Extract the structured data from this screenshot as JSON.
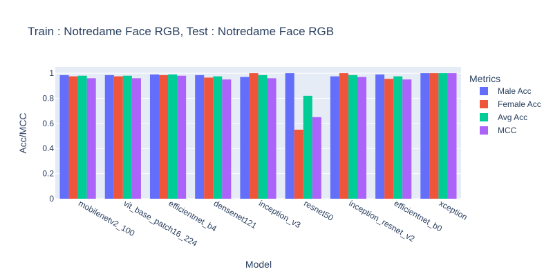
{
  "chart_data": {
    "type": "bar",
    "title": "Train : Notredame Face RGB, Test : Notredame Face RGB",
    "xlabel": "Model",
    "ylabel": "Acc/MCC",
    "ylim": [
      0,
      1.05
    ],
    "yticks": [
      "0",
      "0.2",
      "0.4",
      "0.6",
      "0.8",
      "1"
    ],
    "grid": true,
    "legend_title": "Metrics",
    "legend_position": "right",
    "categories": [
      "mobilenetv2_100",
      "vit_base_patch16_224",
      "efficientnet_b4",
      "densenet121",
      "inception_v3",
      "resnet50",
      "inception_resnet_v2",
      "efficientnet_b0",
      "xception"
    ],
    "series": [
      {
        "name": "Male Acc",
        "color": "#636efa",
        "values": [
          0.985,
          0.985,
          0.99,
          0.985,
          0.97,
          1.0,
          0.975,
          0.99,
          1.0
        ]
      },
      {
        "name": "Female Acc",
        "color": "#ef553b",
        "values": [
          0.975,
          0.975,
          0.985,
          0.965,
          1.0,
          0.55,
          1.0,
          0.955,
          1.0
        ]
      },
      {
        "name": "Avg Acc",
        "color": "#00cc96",
        "values": [
          0.98,
          0.98,
          0.99,
          0.975,
          0.985,
          0.82,
          0.985,
          0.975,
          1.0
        ]
      },
      {
        "name": "MCC",
        "color": "#ab63fa",
        "values": [
          0.96,
          0.96,
          0.98,
          0.95,
          0.96,
          0.65,
          0.97,
          0.95,
          1.0
        ]
      }
    ]
  }
}
